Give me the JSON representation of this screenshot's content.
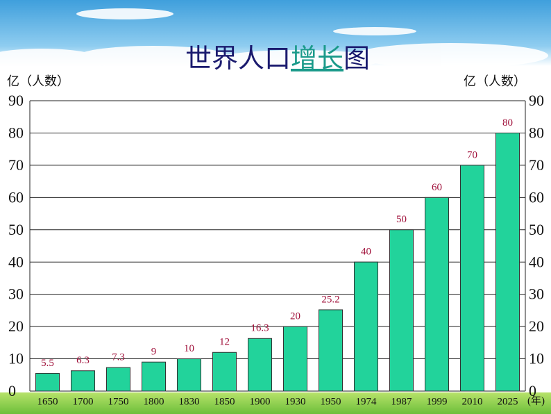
{
  "chart_data": {
    "type": "bar",
    "title": [
      "世界人口",
      "增长",
      "图"
    ],
    "y_label": "亿（人数）",
    "y2_label": "亿（人数）",
    "x_label": "(年)",
    "categories": [
      "1650",
      "1700",
      "1750",
      "1800",
      "1830",
      "1850",
      "1900",
      "1930",
      "1950",
      "1974",
      "1987",
      "1999",
      "2010",
      "2025"
    ],
    "values": [
      5.5,
      6.3,
      7.3,
      9,
      10,
      12,
      16.3,
      20,
      25.2,
      40,
      50,
      60,
      70,
      80
    ],
    "color": "#22d39b",
    "label_color": "#a0103a",
    "ylim": [
      0,
      90
    ],
    "yticks": [
      0,
      10,
      20,
      30,
      40,
      50,
      60,
      70,
      80,
      90
    ],
    "y2lim": [
      0,
      90
    ],
    "y2ticks": [
      0,
      10,
      20,
      30,
      40,
      50,
      60,
      70,
      80,
      90
    ],
    "grid": true
  }
}
